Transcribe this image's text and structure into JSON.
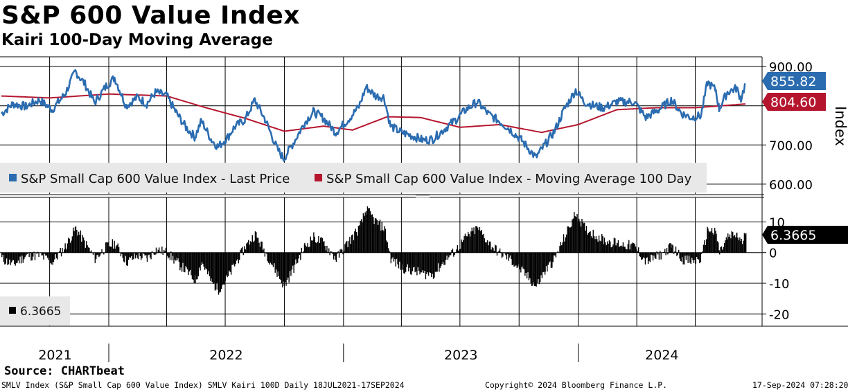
{
  "header": {
    "title": "S&P 600 Value Index",
    "subtitle": "Kairi 100-Day Moving Average"
  },
  "source": "Source: CHARTbeat",
  "footer": {
    "description": "SMLV Index (S&P Small Cap 600 Value Index) SMLV Kairi 100D  Daily 18JUL2021-17SEP2024",
    "copyright": "Copyright© 2024 Bloomberg Finance L.P.",
    "timestamp": "17-Sep-2024 07:28:20"
  },
  "colors": {
    "price": "#2b6cb0",
    "moving_average": "#b5162e",
    "kairi": "#000000",
    "legend_bg": "#e8e8e8"
  },
  "chart_data": [
    {
      "type": "line",
      "name": "upper-panel",
      "ylabel": "Index",
      "ylim": [
        575,
        925
      ],
      "yticks": [
        600,
        700,
        800,
        900
      ],
      "ytick_labels": [
        "600.00",
        "700.00",
        "800.00",
        "900.00"
      ],
      "x_range": [
        "2021-07-18",
        "2024-09-17"
      ],
      "x_tick_dates": [
        "2021-07-18",
        "2022-01-01",
        "2023-01-01",
        "2024-01-01"
      ],
      "last_value_labels": [
        {
          "series": "Last Price",
          "value": "855.82"
        },
        {
          "series": "Moving Average 100 Day",
          "value": "804.60"
        }
      ],
      "legend": [
        "S&P Small Cap 600 Value Index - Last Price",
        "S&P Small Cap 600 Value Index - Moving Average 100 Day"
      ],
      "series": [
        {
          "name": "S&P Small Cap 600 Value Index - Last Price",
          "points": [
            [
              "2021-07-18",
              780
            ],
            [
              "2021-08-05",
              805
            ],
            [
              "2021-08-25",
              798
            ],
            [
              "2021-09-15",
              815
            ],
            [
              "2021-10-05",
              790
            ],
            [
              "2021-10-25",
              830
            ],
            [
              "2021-11-10",
              888
            ],
            [
              "2021-11-25",
              855
            ],
            [
              "2021-12-10",
              808
            ],
            [
              "2021-12-28",
              850
            ],
            [
              "2022-01-10",
              872
            ],
            [
              "2022-01-28",
              800
            ],
            [
              "2022-02-15",
              822
            ],
            [
              "2022-03-01",
              805
            ],
            [
              "2022-03-15",
              835
            ],
            [
              "2022-04-01",
              825
            ],
            [
              "2022-04-15",
              785
            ],
            [
              "2022-05-01",
              745
            ],
            [
              "2022-05-15",
              720
            ],
            [
              "2022-05-25",
              762
            ],
            [
              "2022-06-10",
              712
            ],
            [
              "2022-06-20",
              695
            ],
            [
              "2022-07-05",
              720
            ],
            [
              "2022-07-15",
              745
            ],
            [
              "2022-08-01",
              765
            ],
            [
              "2022-08-16",
              815
            ],
            [
              "2022-09-01",
              765
            ],
            [
              "2022-09-20",
              690
            ],
            [
              "2022-09-30",
              665
            ],
            [
              "2022-10-15",
              705
            ],
            [
              "2022-11-01",
              755
            ],
            [
              "2022-11-15",
              785
            ],
            [
              "2022-12-01",
              768
            ],
            [
              "2022-12-20",
              732
            ],
            [
              "2023-01-10",
              768
            ],
            [
              "2023-01-25",
              798
            ],
            [
              "2023-02-05",
              848
            ],
            [
              "2023-02-20",
              825
            ],
            [
              "2023-03-05",
              822
            ],
            [
              "2023-03-15",
              748
            ],
            [
              "2023-04-01",
              732
            ],
            [
              "2023-04-20",
              722
            ],
            [
              "2023-05-05",
              712
            ],
            [
              "2023-05-20",
              715
            ],
            [
              "2023-06-10",
              745
            ],
            [
              "2023-06-25",
              765
            ],
            [
              "2023-07-10",
              790
            ],
            [
              "2023-07-28",
              810
            ],
            [
              "2023-08-15",
              778
            ],
            [
              "2023-08-30",
              762
            ],
            [
              "2023-09-15",
              742
            ],
            [
              "2023-10-05",
              712
            ],
            [
              "2023-10-27",
              668
            ],
            [
              "2023-11-10",
              700
            ],
            [
              "2023-11-25",
              735
            ],
            [
              "2023-12-10",
              790
            ],
            [
              "2023-12-28",
              840
            ],
            [
              "2024-01-10",
              810
            ],
            [
              "2024-01-25",
              800
            ],
            [
              "2024-02-10",
              795
            ],
            [
              "2024-03-01",
              810
            ],
            [
              "2024-03-28",
              810
            ],
            [
              "2024-04-15",
              770
            ],
            [
              "2024-05-05",
              790
            ],
            [
              "2024-05-25",
              815
            ],
            [
              "2024-06-10",
              780
            ],
            [
              "2024-06-25",
              770
            ],
            [
              "2024-07-10",
              775
            ],
            [
              "2024-07-20",
              860
            ],
            [
              "2024-08-02",
              840
            ],
            [
              "2024-08-07",
              792
            ],
            [
              "2024-08-20",
              835
            ],
            [
              "2024-09-03",
              845
            ],
            [
              "2024-09-10",
              818
            ],
            [
              "2024-09-17",
              855.82
            ]
          ]
        },
        {
          "name": "S&P Small Cap 600 Value Index - Moving Average 100 Day",
          "points": [
            [
              "2021-07-18",
              825
            ],
            [
              "2021-10-01",
              820
            ],
            [
              "2022-01-01",
              830
            ],
            [
              "2022-04-01",
              825
            ],
            [
              "2022-06-01",
              795
            ],
            [
              "2022-08-01",
              768
            ],
            [
              "2022-10-01",
              735
            ],
            [
              "2022-12-01",
              748
            ],
            [
              "2023-01-15",
              738
            ],
            [
              "2023-03-10",
              772
            ],
            [
              "2023-05-01",
              770
            ],
            [
              "2023-07-01",
              745
            ],
            [
              "2023-09-01",
              752
            ],
            [
              "2023-11-05",
              732
            ],
            [
              "2024-01-01",
              752
            ],
            [
              "2024-03-01",
              790
            ],
            [
              "2024-05-01",
              795
            ],
            [
              "2024-07-01",
              795
            ],
            [
              "2024-09-17",
              804.6
            ]
          ]
        }
      ]
    },
    {
      "type": "bar",
      "name": "lower-panel",
      "ylim": [
        -24,
        18
      ],
      "yticks": [
        -20,
        -10,
        0,
        10
      ],
      "ytick_labels": [
        "-20",
        "-10",
        "0",
        "10"
      ],
      "x_range": [
        "2021-07-18",
        "2024-09-17"
      ],
      "x_tick_labels": [
        "2021",
        "2022",
        "2023",
        "2024"
      ],
      "last_value_label": "6.3665",
      "legend": [
        "6.3665"
      ],
      "series": [
        {
          "name": "Kairi 100D",
          "points": [
            [
              "2021-07-18",
              -2
            ],
            [
              "2021-08-05",
              -4
            ],
            [
              "2021-08-25",
              -1
            ],
            [
              "2021-09-15",
              -1
            ],
            [
              "2021-10-05",
              -3
            ],
            [
              "2021-10-25",
              2
            ],
            [
              "2021-11-10",
              8
            ],
            [
              "2021-11-25",
              3
            ],
            [
              "2021-12-10",
              -2
            ],
            [
              "2021-12-28",
              2
            ],
            [
              "2022-01-10",
              3
            ],
            [
              "2022-01-28",
              -3
            ],
            [
              "2022-02-15",
              -1
            ],
            [
              "2022-03-01",
              -2
            ],
            [
              "2022-03-15",
              1
            ],
            [
              "2022-04-01",
              0
            ],
            [
              "2022-04-15",
              -3
            ],
            [
              "2022-05-01",
              -6
            ],
            [
              "2022-05-15",
              -9
            ],
            [
              "2022-05-25",
              -3
            ],
            [
              "2022-06-10",
              -10
            ],
            [
              "2022-06-20",
              -12
            ],
            [
              "2022-07-05",
              -8
            ],
            [
              "2022-07-15",
              -4
            ],
            [
              "2022-08-01",
              2
            ],
            [
              "2022-08-16",
              6
            ],
            [
              "2022-09-01",
              0
            ],
            [
              "2022-09-20",
              -7
            ],
            [
              "2022-09-30",
              -11
            ],
            [
              "2022-10-15",
              -5
            ],
            [
              "2022-11-01",
              2
            ],
            [
              "2022-11-15",
              5
            ],
            [
              "2022-12-01",
              3
            ],
            [
              "2022-12-20",
              -2
            ],
            [
              "2023-01-10",
              4
            ],
            [
              "2023-01-25",
              8
            ],
            [
              "2023-02-05",
              14
            ],
            [
              "2023-02-20",
              10
            ],
            [
              "2023-03-05",
              8
            ],
            [
              "2023-03-15",
              -2
            ],
            [
              "2023-04-01",
              -5
            ],
            [
              "2023-04-20",
              -6
            ],
            [
              "2023-05-05",
              -7
            ],
            [
              "2023-05-20",
              -7
            ],
            [
              "2023-06-10",
              -2
            ],
            [
              "2023-06-25",
              1
            ],
            [
              "2023-07-10",
              5
            ],
            [
              "2023-07-28",
              8
            ],
            [
              "2023-08-15",
              3
            ],
            [
              "2023-08-30",
              0
            ],
            [
              "2023-09-15",
              -2
            ],
            [
              "2023-10-05",
              -6
            ],
            [
              "2023-10-27",
              -11
            ],
            [
              "2023-11-10",
              -6
            ],
            [
              "2023-11-25",
              -2
            ],
            [
              "2023-12-10",
              5
            ],
            [
              "2023-12-28",
              13
            ],
            [
              "2024-01-10",
              8
            ],
            [
              "2024-01-25",
              6
            ],
            [
              "2024-02-10",
              4
            ],
            [
              "2024-03-01",
              3
            ],
            [
              "2024-03-28",
              2
            ],
            [
              "2024-04-15",
              -3
            ],
            [
              "2024-05-05",
              -1
            ],
            [
              "2024-05-25",
              2
            ],
            [
              "2024-06-10",
              -2
            ],
            [
              "2024-06-25",
              -3
            ],
            [
              "2024-07-10",
              -2
            ],
            [
              "2024-07-20",
              8
            ],
            [
              "2024-08-02",
              6
            ],
            [
              "2024-08-07",
              0
            ],
            [
              "2024-08-20",
              5
            ],
            [
              "2024-09-03",
              6
            ],
            [
              "2024-09-10",
              3
            ],
            [
              "2024-09-17",
              6.3665
            ]
          ]
        }
      ]
    }
  ]
}
